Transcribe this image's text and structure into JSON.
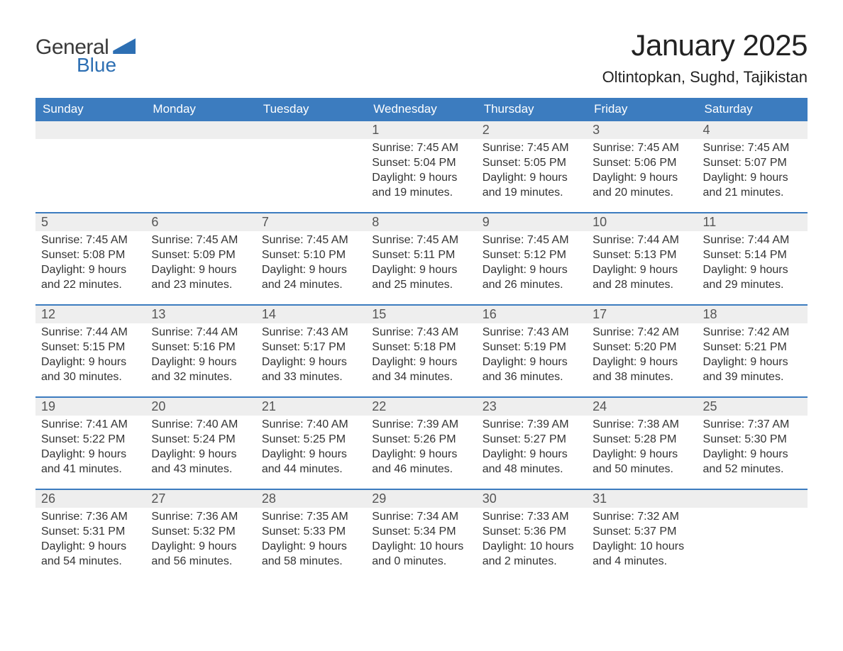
{
  "logo": {
    "text1": "General",
    "text2": "Blue"
  },
  "title": "January 2025",
  "location": "Oltintopkan, Sughd, Tajikistan",
  "colors": {
    "header_bg": "#3c7cbf",
    "header_text": "#ffffff",
    "daynum_bg": "#eeeeee",
    "week_divider": "#3c7cbf",
    "body_text": "#333333",
    "logo_gray": "#3a3a3a",
    "logo_blue": "#2d6fb3",
    "page_bg": "#ffffff"
  },
  "typography": {
    "title_fontsize": 42,
    "location_fontsize": 22,
    "weekday_fontsize": 17,
    "daynum_fontsize": 18,
    "body_fontsize": 16,
    "font_family": "Arial"
  },
  "weekdays": [
    "Sunday",
    "Monday",
    "Tuesday",
    "Wednesday",
    "Thursday",
    "Friday",
    "Saturday"
  ],
  "weeks": [
    [
      null,
      null,
      null,
      {
        "n": "1",
        "sunrise": "Sunrise: 7:45 AM",
        "sunset": "Sunset: 5:04 PM",
        "d1": "Daylight: 9 hours",
        "d2": "and 19 minutes."
      },
      {
        "n": "2",
        "sunrise": "Sunrise: 7:45 AM",
        "sunset": "Sunset: 5:05 PM",
        "d1": "Daylight: 9 hours",
        "d2": "and 19 minutes."
      },
      {
        "n": "3",
        "sunrise": "Sunrise: 7:45 AM",
        "sunset": "Sunset: 5:06 PM",
        "d1": "Daylight: 9 hours",
        "d2": "and 20 minutes."
      },
      {
        "n": "4",
        "sunrise": "Sunrise: 7:45 AM",
        "sunset": "Sunset: 5:07 PM",
        "d1": "Daylight: 9 hours",
        "d2": "and 21 minutes."
      }
    ],
    [
      {
        "n": "5",
        "sunrise": "Sunrise: 7:45 AM",
        "sunset": "Sunset: 5:08 PM",
        "d1": "Daylight: 9 hours",
        "d2": "and 22 minutes."
      },
      {
        "n": "6",
        "sunrise": "Sunrise: 7:45 AM",
        "sunset": "Sunset: 5:09 PM",
        "d1": "Daylight: 9 hours",
        "d2": "and 23 minutes."
      },
      {
        "n": "7",
        "sunrise": "Sunrise: 7:45 AM",
        "sunset": "Sunset: 5:10 PM",
        "d1": "Daylight: 9 hours",
        "d2": "and 24 minutes."
      },
      {
        "n": "8",
        "sunrise": "Sunrise: 7:45 AM",
        "sunset": "Sunset: 5:11 PM",
        "d1": "Daylight: 9 hours",
        "d2": "and 25 minutes."
      },
      {
        "n": "9",
        "sunrise": "Sunrise: 7:45 AM",
        "sunset": "Sunset: 5:12 PM",
        "d1": "Daylight: 9 hours",
        "d2": "and 26 minutes."
      },
      {
        "n": "10",
        "sunrise": "Sunrise: 7:44 AM",
        "sunset": "Sunset: 5:13 PM",
        "d1": "Daylight: 9 hours",
        "d2": "and 28 minutes."
      },
      {
        "n": "11",
        "sunrise": "Sunrise: 7:44 AM",
        "sunset": "Sunset: 5:14 PM",
        "d1": "Daylight: 9 hours",
        "d2": "and 29 minutes."
      }
    ],
    [
      {
        "n": "12",
        "sunrise": "Sunrise: 7:44 AM",
        "sunset": "Sunset: 5:15 PM",
        "d1": "Daylight: 9 hours",
        "d2": "and 30 minutes."
      },
      {
        "n": "13",
        "sunrise": "Sunrise: 7:44 AM",
        "sunset": "Sunset: 5:16 PM",
        "d1": "Daylight: 9 hours",
        "d2": "and 32 minutes."
      },
      {
        "n": "14",
        "sunrise": "Sunrise: 7:43 AM",
        "sunset": "Sunset: 5:17 PM",
        "d1": "Daylight: 9 hours",
        "d2": "and 33 minutes."
      },
      {
        "n": "15",
        "sunrise": "Sunrise: 7:43 AM",
        "sunset": "Sunset: 5:18 PM",
        "d1": "Daylight: 9 hours",
        "d2": "and 34 minutes."
      },
      {
        "n": "16",
        "sunrise": "Sunrise: 7:43 AM",
        "sunset": "Sunset: 5:19 PM",
        "d1": "Daylight: 9 hours",
        "d2": "and 36 minutes."
      },
      {
        "n": "17",
        "sunrise": "Sunrise: 7:42 AM",
        "sunset": "Sunset: 5:20 PM",
        "d1": "Daylight: 9 hours",
        "d2": "and 38 minutes."
      },
      {
        "n": "18",
        "sunrise": "Sunrise: 7:42 AM",
        "sunset": "Sunset: 5:21 PM",
        "d1": "Daylight: 9 hours",
        "d2": "and 39 minutes."
      }
    ],
    [
      {
        "n": "19",
        "sunrise": "Sunrise: 7:41 AM",
        "sunset": "Sunset: 5:22 PM",
        "d1": "Daylight: 9 hours",
        "d2": "and 41 minutes."
      },
      {
        "n": "20",
        "sunrise": "Sunrise: 7:40 AM",
        "sunset": "Sunset: 5:24 PM",
        "d1": "Daylight: 9 hours",
        "d2": "and 43 minutes."
      },
      {
        "n": "21",
        "sunrise": "Sunrise: 7:40 AM",
        "sunset": "Sunset: 5:25 PM",
        "d1": "Daylight: 9 hours",
        "d2": "and 44 minutes."
      },
      {
        "n": "22",
        "sunrise": "Sunrise: 7:39 AM",
        "sunset": "Sunset: 5:26 PM",
        "d1": "Daylight: 9 hours",
        "d2": "and 46 minutes."
      },
      {
        "n": "23",
        "sunrise": "Sunrise: 7:39 AM",
        "sunset": "Sunset: 5:27 PM",
        "d1": "Daylight: 9 hours",
        "d2": "and 48 minutes."
      },
      {
        "n": "24",
        "sunrise": "Sunrise: 7:38 AM",
        "sunset": "Sunset: 5:28 PM",
        "d1": "Daylight: 9 hours",
        "d2": "and 50 minutes."
      },
      {
        "n": "25",
        "sunrise": "Sunrise: 7:37 AM",
        "sunset": "Sunset: 5:30 PM",
        "d1": "Daylight: 9 hours",
        "d2": "and 52 minutes."
      }
    ],
    [
      {
        "n": "26",
        "sunrise": "Sunrise: 7:36 AM",
        "sunset": "Sunset: 5:31 PM",
        "d1": "Daylight: 9 hours",
        "d2": "and 54 minutes."
      },
      {
        "n": "27",
        "sunrise": "Sunrise: 7:36 AM",
        "sunset": "Sunset: 5:32 PM",
        "d1": "Daylight: 9 hours",
        "d2": "and 56 minutes."
      },
      {
        "n": "28",
        "sunrise": "Sunrise: 7:35 AM",
        "sunset": "Sunset: 5:33 PM",
        "d1": "Daylight: 9 hours",
        "d2": "and 58 minutes."
      },
      {
        "n": "29",
        "sunrise": "Sunrise: 7:34 AM",
        "sunset": "Sunset: 5:34 PM",
        "d1": "Daylight: 10 hours",
        "d2": "and 0 minutes."
      },
      {
        "n": "30",
        "sunrise": "Sunrise: 7:33 AM",
        "sunset": "Sunset: 5:36 PM",
        "d1": "Daylight: 10 hours",
        "d2": "and 2 minutes."
      },
      {
        "n": "31",
        "sunrise": "Sunrise: 7:32 AM",
        "sunset": "Sunset: 5:37 PM",
        "d1": "Daylight: 10 hours",
        "d2": "and 4 minutes."
      },
      null
    ]
  ]
}
